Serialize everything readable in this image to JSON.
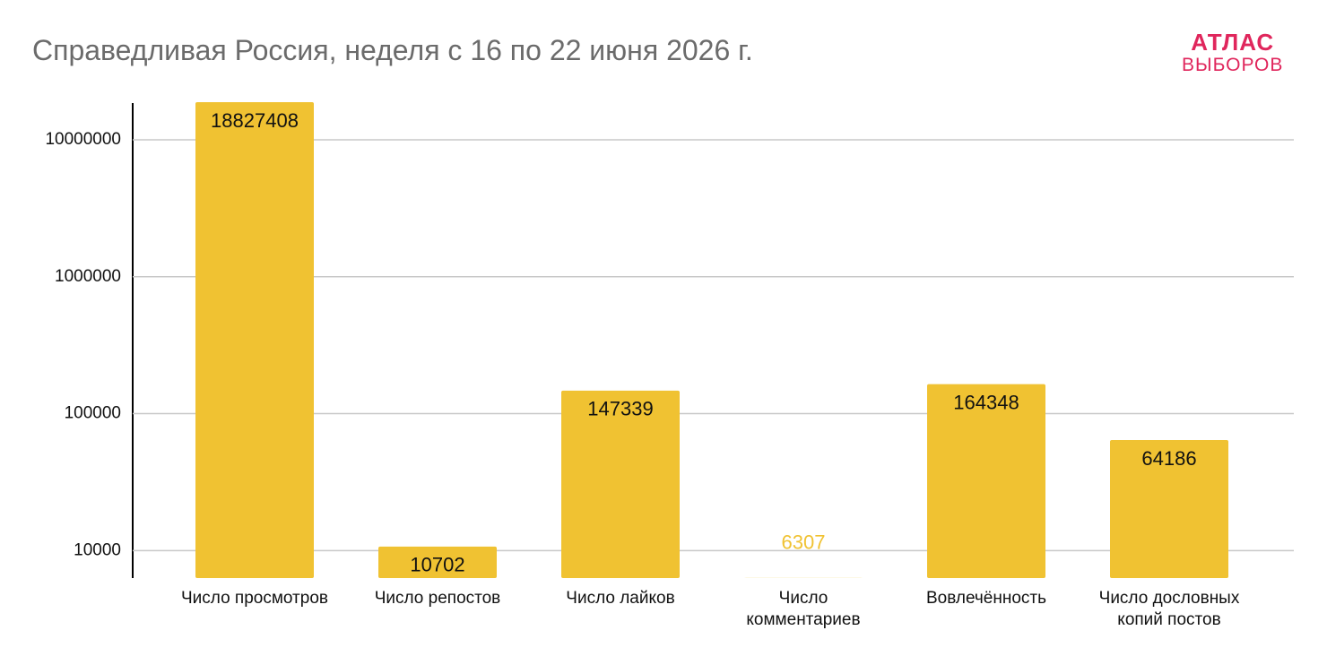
{
  "chart_data": {
    "type": "bar",
    "title": "Справедливая Россия, неделя с 16 по 22 июня 2026 г.",
    "logo": {
      "line1": "АТЛАС",
      "line2": "ВЫБОРОВ"
    },
    "categories": [
      "Число просмотров",
      "Число репостов",
      "Число лайков",
      "Число\nкомментариев",
      "Вовлечённость",
      "Число дословных\nкопий постов"
    ],
    "values": [
      18827408,
      10702,
      147339,
      6307,
      164348,
      64186
    ],
    "color": "#f0c232",
    "log_scale": true,
    "ylim": [
      6300,
      20000000
    ],
    "yticks": [
      10000,
      100000,
      1000000,
      10000000
    ],
    "grid": true
  }
}
